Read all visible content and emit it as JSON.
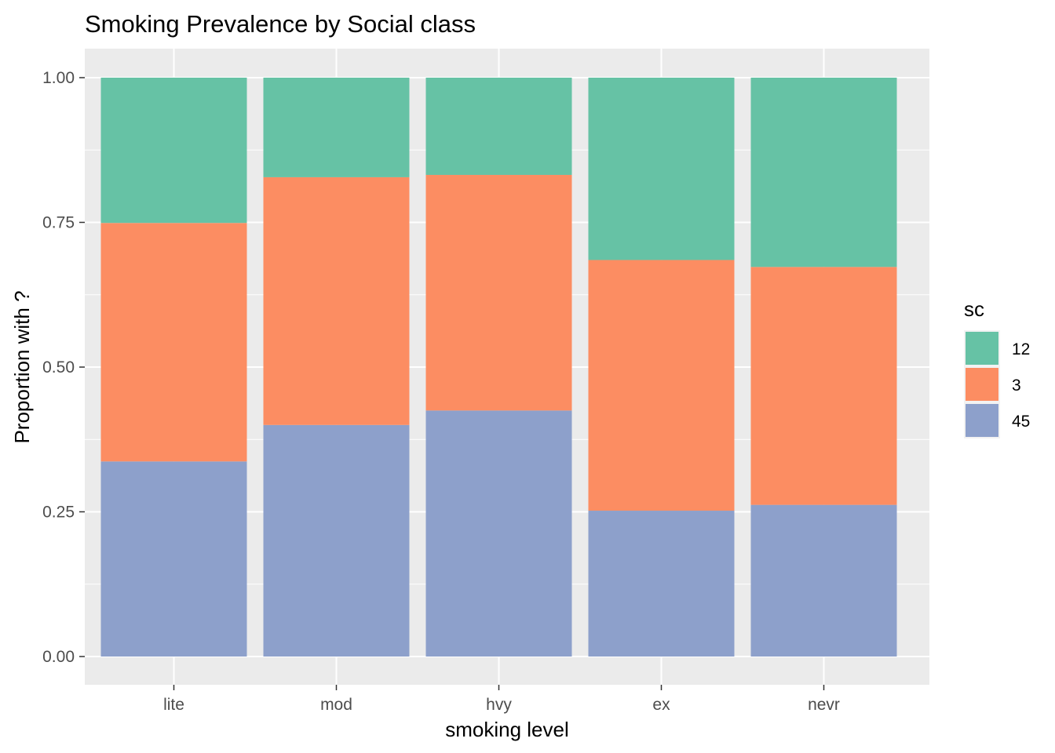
{
  "chart_data": {
    "type": "bar",
    "stacked": true,
    "title": "Smoking Prevalence by Social class",
    "xlabel": "smoking level",
    "ylabel": "Proportion with ?",
    "categories": [
      "lite",
      "mod",
      "hvy",
      "ex",
      "nevr"
    ],
    "ylim": [
      0,
      1
    ],
    "yticks": [
      "0.00",
      "0.25",
      "0.50",
      "0.75",
      "1.00"
    ],
    "ytick_values": [
      0,
      0.25,
      0.5,
      0.75,
      1.0
    ],
    "grid": true,
    "legend": {
      "title": "sc",
      "placement": "right"
    },
    "series": [
      {
        "name": "45",
        "color": "#8da0cb",
        "values": [
          0.337,
          0.4,
          0.425,
          0.252,
          0.262
        ]
      },
      {
        "name": "3",
        "color": "#fc8d62",
        "values": [
          0.412,
          0.428,
          0.407,
          0.433,
          0.411
        ]
      },
      {
        "name": "12",
        "color": "#66c2a5",
        "values": [
          0.251,
          0.172,
          0.168,
          0.315,
          0.327
        ]
      }
    ],
    "stack_order_bottom_to_top": [
      "45",
      "3",
      "12"
    ],
    "legend_order": [
      "12",
      "3",
      "45"
    ]
  }
}
